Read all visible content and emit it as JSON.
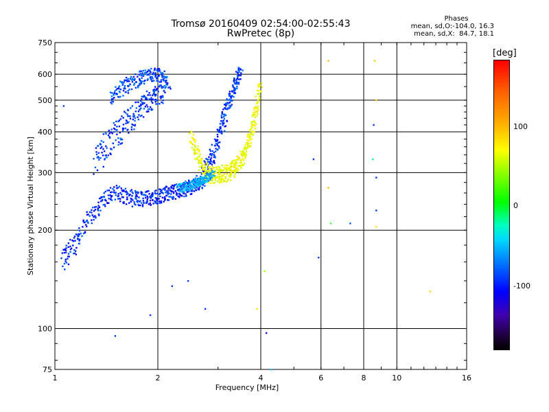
{
  "header": {
    "title_line1": "Tromsø 20160409 02:54:00-02:55:43",
    "title_line2": "RwPretec (8p)",
    "phases_title": "Phases",
    "phases_line1": "mean, sd,O:-104.0, 16.3",
    "phases_line2": "mean, sd,X:  84.7, 18.1"
  },
  "colorbar": {
    "unit": "[deg]",
    "ticks": [
      "100",
      "0",
      "-100"
    ],
    "tick_values": [
      100,
      0,
      -100
    ],
    "range": [
      -180,
      180
    ]
  },
  "chart_data": {
    "type": "scatter",
    "title": "Tromsø 20160409 02:54:00-02:55:43",
    "subtitle": "RwPretec (8p)",
    "xlabel": "Frequency [MHz]",
    "ylabel": "Stationary phase Virtual Height [km]",
    "x_scale": "log",
    "y_scale": "log",
    "xlim": [
      1,
      16
    ],
    "ylim": [
      75,
      750
    ],
    "x_ticks": [
      1,
      2,
      4,
      6,
      8,
      10,
      16
    ],
    "x_tick_labels": [
      "1",
      "2",
      "4",
      "6",
      "8",
      "10",
      "16"
    ],
    "y_ticks": [
      75,
      100,
      200,
      300,
      400,
      500,
      600,
      750
    ],
    "y_tick_labels": [
      "75",
      "100",
      "200",
      "300",
      "400",
      "500",
      "600",
      "750"
    ],
    "grid": true,
    "color_by": "phase (deg)",
    "traces": [
      {
        "x": [
          1.05,
          1.12,
          1.2,
          1.3,
          1.4,
          1.5,
          1.6,
          1.7,
          1.8,
          1.9,
          2.0,
          2.1,
          2.2,
          2.3,
          2.4,
          2.5,
          2.6,
          2.7
        ],
        "y": [
          160,
          175,
          200,
          225,
          250,
          262,
          255,
          250,
          250,
          252,
          255,
          258,
          262,
          265,
          268,
          272,
          278,
          285
        ],
        "phase": -105,
        "spread_km": 14
      },
      {
        "x": [
          1.3,
          1.4,
          1.5,
          1.6,
          1.7,
          1.8,
          1.9,
          2.0,
          2.1
        ],
        "y": [
          330,
          360,
          390,
          420,
          450,
          480,
          500,
          520,
          540
        ],
        "phase": -100,
        "spread_km": 40
      },
      {
        "x": [
          1.45,
          1.55,
          1.65,
          1.75,
          1.85,
          1.95,
          2.05,
          2.15
        ],
        "y": [
          510,
          540,
          560,
          580,
          590,
          600,
          590,
          560
        ],
        "phase": -95,
        "spread_km": 30
      },
      {
        "x": [
          2.7,
          2.8,
          2.9,
          3.0,
          3.1,
          3.2,
          3.3,
          3.4,
          3.5
        ],
        "y": [
          290,
          310,
          340,
          380,
          430,
          480,
          530,
          580,
          620
        ],
        "phase": -100,
        "spread_km": 25
      },
      {
        "x": [
          2.5,
          2.6,
          2.7,
          2.8,
          2.9,
          3.0,
          3.1,
          3.2,
          3.3,
          3.4,
          3.5,
          3.6,
          3.7,
          3.8,
          3.9,
          4.0
        ],
        "y": [
          390,
          340,
          310,
          298,
          295,
          296,
          298,
          300,
          305,
          315,
          330,
          350,
          380,
          420,
          480,
          560
        ],
        "phase": 85,
        "spread_km": 18
      },
      {
        "x": [
          2.3,
          2.4,
          2.5,
          2.6,
          2.7,
          2.8,
          2.9
        ],
        "y": [
          270,
          272,
          275,
          280,
          285,
          290,
          300
        ],
        "phase": -60,
        "spread_km": 8
      }
    ],
    "isolated_points": [
      {
        "x": 1.06,
        "y": 480,
        "phase": -100
      },
      {
        "x": 1.5,
        "y": 95,
        "phase": -100
      },
      {
        "x": 1.9,
        "y": 110,
        "phase": -100
      },
      {
        "x": 2.2,
        "y": 135,
        "phase": -100
      },
      {
        "x": 2.45,
        "y": 140,
        "phase": -100
      },
      {
        "x": 2.75,
        "y": 115,
        "phase": -100
      },
      {
        "x": 4.15,
        "y": 97,
        "phase": -120
      },
      {
        "x": 4.1,
        "y": 150,
        "phase": 60
      },
      {
        "x": 5.7,
        "y": 330,
        "phase": -100
      },
      {
        "x": 5.9,
        "y": 165,
        "phase": -100
      },
      {
        "x": 6.3,
        "y": 660,
        "phase": 120
      },
      {
        "x": 6.3,
        "y": 270,
        "phase": 120
      },
      {
        "x": 6.4,
        "y": 210,
        "phase": 20
      },
      {
        "x": 7.3,
        "y": 210,
        "phase": -90
      },
      {
        "x": 8.6,
        "y": 660,
        "phase": 110
      },
      {
        "x": 8.7,
        "y": 500,
        "phase": 110
      },
      {
        "x": 8.55,
        "y": 420,
        "phase": -100
      },
      {
        "x": 8.5,
        "y": 330,
        "phase": -10
      },
      {
        "x": 8.7,
        "y": 290,
        "phase": -100
      },
      {
        "x": 8.7,
        "y": 230,
        "phase": -100
      },
      {
        "x": 8.7,
        "y": 205,
        "phase": 100
      },
      {
        "x": 12.5,
        "y": 130,
        "phase": 110
      },
      {
        "x": 3.9,
        "y": 115,
        "phase": 100
      },
      {
        "x": 4.3,
        "y": 75,
        "phase": -50
      }
    ]
  }
}
